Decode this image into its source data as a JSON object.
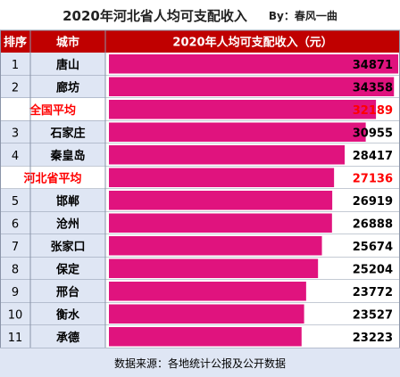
{
  "chart_data": {
    "type": "bar",
    "title": "2020年河北省人均可支配收入",
    "byline": "By：春风一曲",
    "headers": {
      "rank": "排序",
      "city": "城市",
      "value": "2020年人均可支配收入（元）"
    },
    "rows": [
      {
        "rank": "1",
        "city": "唐山",
        "value": 34871
      },
      {
        "rank": "2",
        "city": "廊坊",
        "value": 34358
      },
      {
        "rank": "",
        "city": "全国平均",
        "value": 32189,
        "special": true
      },
      {
        "rank": "3",
        "city": "石家庄",
        "value": 30955
      },
      {
        "rank": "4",
        "city": "秦皇岛",
        "value": 28417
      },
      {
        "rank": "",
        "city": "河北省平均",
        "value": 27136,
        "special": true
      },
      {
        "rank": "5",
        "city": "邯郸",
        "value": 26919
      },
      {
        "rank": "6",
        "city": "沧州",
        "value": 26888
      },
      {
        "rank": "7",
        "city": "张家口",
        "value": 25674
      },
      {
        "rank": "8",
        "city": "保定",
        "value": 25204
      },
      {
        "rank": "9",
        "city": "邢台",
        "value": 23772
      },
      {
        "rank": "10",
        "city": "衡水",
        "value": 23527
      },
      {
        "rank": "11",
        "city": "承德",
        "value": 23223
      }
    ],
    "value_range": [
      0,
      34871
    ],
    "footer": "数据来源：各地统计公报及公开数据",
    "colors": {
      "header_bg": "#c00000",
      "row_bg": "#dfe6f4",
      "bar": "#e0137e",
      "special_text": "#ff0000",
      "special_bg": "#ffffff",
      "grid": "#8a94a8"
    }
  }
}
